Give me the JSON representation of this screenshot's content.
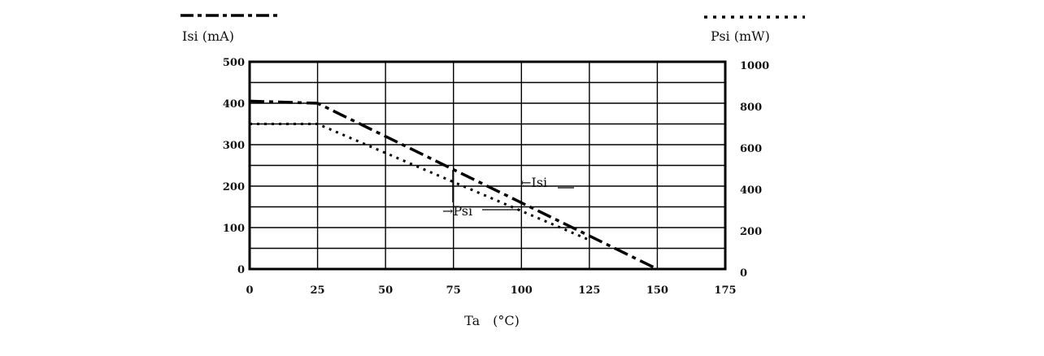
{
  "chart_data": {
    "type": "line",
    "title": "",
    "xlabel": "Ta　(°C)",
    "ylabel_left": "Isi (mA)",
    "ylabel_right": "Psi (mW)",
    "xlim": [
      0,
      175
    ],
    "ylim_left": [
      0,
      500
    ],
    "ylim_right": [
      0,
      1000
    ],
    "x_ticks": [
      "0",
      "25",
      "50",
      "75",
      "100",
      "125",
      "150",
      "175"
    ],
    "y_left_ticks": [
      "0",
      "100",
      "200",
      "300",
      "400",
      "500"
    ],
    "y_right_ticks": [
      "0",
      "200",
      "400",
      "600",
      "800",
      "1000"
    ],
    "grid": true,
    "legend": "top (line-style swatches above each y-axis title)",
    "series": [
      {
        "name": "Isi",
        "axis": "left",
        "style": "dash-dot",
        "color": "#000000",
        "x": [
          0,
          25,
          150
        ],
        "y": [
          405,
          400,
          0
        ]
      },
      {
        "name": "Psi",
        "axis": "right",
        "style": "dotted",
        "color": "#000000",
        "x": [
          0,
          25,
          125
        ],
        "y": [
          700,
          700,
          140
        ]
      }
    ],
    "annotations": [
      {
        "text": "←Isi",
        "target": "Isi"
      },
      {
        "text": "→Psi",
        "target": "Psi"
      }
    ]
  }
}
